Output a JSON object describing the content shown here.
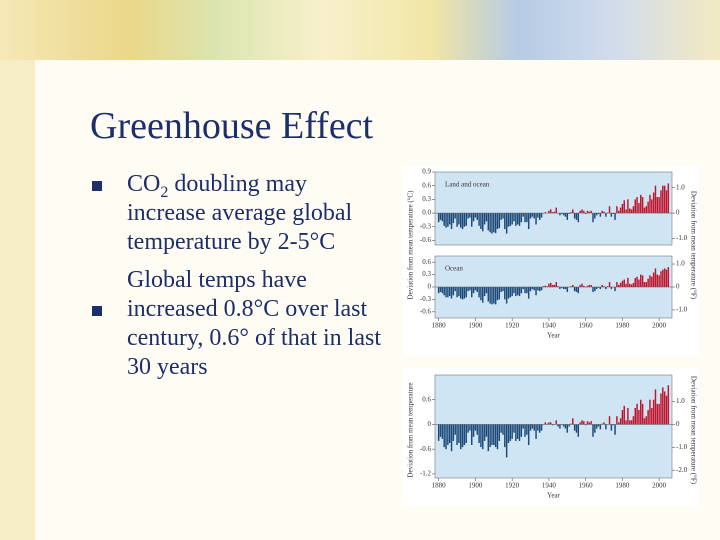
{
  "title": "Greenhouse Effect",
  "bullets": [
    {
      "before": "CO",
      "subscript": "2",
      "after": " doubling may increase average global temperature by 2-5°C"
    },
    {
      "before": "Global temps have increased 0.8°C over last century, 0.6° of that in last 30 years"
    }
  ],
  "chart_data": [
    {
      "type": "bar",
      "label": "Land and ocean",
      "ylabel": "Deviation from mean temperature (°C)",
      "y2label": "Deviation from mean temperature (°F)",
      "pos_color": "#c0142b",
      "neg_color": "#1d4a78",
      "xlim": [
        1878,
        2007
      ],
      "ylim": [
        -0.7,
        0.9
      ],
      "y2lim": [
        -1.26,
        1.62
      ],
      "yticks": [
        0.9,
        0.6,
        0.3,
        {
          "value": 0,
          "label": "0.0"
        },
        -0.3,
        -0.6
      ],
      "y2ticks": [
        {
          "value": 1,
          "label": "1.0"
        },
        0,
        {
          "value": -1,
          "label": "-1.0"
        }
      ],
      "x": [
        1880,
        1881,
        1882,
        1883,
        1884,
        1885,
        1886,
        1887,
        1888,
        1889,
        1890,
        1891,
        1892,
        1893,
        1894,
        1895,
        1896,
        1897,
        1898,
        1899,
        1900,
        1901,
        1902,
        1903,
        1904,
        1905,
        1906,
        1907,
        1908,
        1909,
        1910,
        1911,
        1912,
        1913,
        1914,
        1915,
        1916,
        1917,
        1918,
        1919,
        1920,
        1921,
        1922,
        1923,
        1924,
        1925,
        1926,
        1927,
        1928,
        1929,
        1930,
        1931,
        1932,
        1933,
        1934,
        1935,
        1936,
        1937,
        1938,
        1939,
        1940,
        1941,
        1942,
        1943,
        1944,
        1945,
        1946,
        1947,
        1948,
        1949,
        1950,
        1951,
        1952,
        1953,
        1954,
        1955,
        1956,
        1957,
        1958,
        1959,
        1960,
        1961,
        1962,
        1963,
        1964,
        1965,
        1966,
        1967,
        1968,
        1969,
        1970,
        1971,
        1972,
        1973,
        1974,
        1975,
        1976,
        1977,
        1978,
        1979,
        1980,
        1981,
        1982,
        1983,
        1984,
        1985,
        1986,
        1987,
        1988,
        1989,
        1990,
        1991,
        1992,
        1993,
        1994,
        1995,
        1996,
        1997,
        1998,
        1999,
        2000,
        2001,
        2002,
        2003,
        2004,
        2005
      ],
      "values": [
        -0.2,
        -0.15,
        -0.18,
        -0.28,
        -0.32,
        -0.3,
        -0.25,
        -0.35,
        -0.22,
        -0.12,
        -0.3,
        -0.25,
        -0.32,
        -0.35,
        -0.3,
        -0.28,
        -0.12,
        -0.1,
        -0.3,
        -0.18,
        -0.1,
        -0.15,
        -0.28,
        -0.35,
        -0.4,
        -0.25,
        -0.18,
        -0.38,
        -0.42,
        -0.45,
        -0.42,
        -0.44,
        -0.35,
        -0.33,
        -0.15,
        -0.12,
        -0.35,
        -0.45,
        -0.3,
        -0.28,
        -0.25,
        -0.18,
        -0.28,
        -0.25,
        -0.28,
        -0.2,
        -0.08,
        -0.2,
        -0.2,
        -0.35,
        -0.12,
        -0.08,
        -0.12,
        -0.25,
        -0.1,
        -0.15,
        -0.1,
        0.0,
        0.02,
        0.0,
        0.05,
        0.08,
        0.02,
        0.03,
        0.12,
        0.0,
        -0.05,
        -0.02,
        -0.05,
        -0.08,
        -0.15,
        -0.02,
        0.02,
        0.08,
        -0.12,
        -0.15,
        -0.2,
        0.05,
        0.08,
        0.05,
        -0.02,
        0.05,
        0.03,
        0.05,
        -0.2,
        -0.12,
        -0.05,
        -0.02,
        -0.08,
        0.05,
        0.03,
        -0.08,
        0.01,
        0.15,
        -0.08,
        -0.02,
        -0.15,
        0.15,
        0.05,
        0.12,
        0.2,
        0.28,
        0.08,
        0.3,
        0.1,
        0.08,
        0.15,
        0.3,
        0.35,
        0.22,
        0.4,
        0.35,
        0.12,
        0.15,
        0.25,
        0.4,
        0.3,
        0.45,
        0.6,
        0.35,
        0.35,
        0.5,
        0.6,
        0.6,
        0.5,
        0.65
      ]
    },
    {
      "type": "bar",
      "label": "Ocean",
      "xlabel": "Year",
      "pos_color": "#c0142b",
      "neg_color": "#1d4a78",
      "xlim": [
        1878,
        2007
      ],
      "ylim": [
        -0.75,
        0.75
      ],
      "y2lim": [
        -1.35,
        1.35
      ],
      "xticks": [
        1880,
        1900,
        1920,
        1940,
        1960,
        1980,
        2000
      ],
      "yticks": [
        0.6,
        0.3,
        0,
        -0.3,
        -0.6
      ],
      "y2ticks": [
        {
          "value": 1,
          "label": "1.0"
        },
        0,
        {
          "value": -1,
          "label": "-1.0"
        }
      ],
      "x": [
        1880,
        1881,
        1882,
        1883,
        1884,
        1885,
        1886,
        1887,
        1888,
        1889,
        1890,
        1891,
        1892,
        1893,
        1894,
        1895,
        1896,
        1897,
        1898,
        1899,
        1900,
        1901,
        1902,
        1903,
        1904,
        1905,
        1906,
        1907,
        1908,
        1909,
        1910,
        1911,
        1912,
        1913,
        1914,
        1915,
        1916,
        1917,
        1918,
        1919,
        1920,
        1921,
        1922,
        1923,
        1924,
        1925,
        1926,
        1927,
        1928,
        1929,
        1930,
        1931,
        1932,
        1933,
        1934,
        1935,
        1936,
        1937,
        1938,
        1939,
        1940,
        1941,
        1942,
        1943,
        1944,
        1945,
        1946,
        1947,
        1948,
        1949,
        1950,
        1951,
        1952,
        1953,
        1954,
        1955,
        1956,
        1957,
        1958,
        1959,
        1960,
        1961,
        1962,
        1963,
        1964,
        1965,
        1966,
        1967,
        1968,
        1969,
        1970,
        1971,
        1972,
        1973,
        1974,
        1975,
        1976,
        1977,
        1978,
        1979,
        1980,
        1981,
        1982,
        1983,
        1984,
        1985,
        1986,
        1987,
        1988,
        1989,
        1990,
        1991,
        1992,
        1993,
        1994,
        1995,
        1996,
        1997,
        1998,
        1999,
        2000,
        2001,
        2002,
        2003,
        2004,
        2005
      ],
      "values": [
        -0.15,
        -0.12,
        -0.15,
        -0.2,
        -0.25,
        -0.25,
        -0.22,
        -0.28,
        -0.2,
        -0.1,
        -0.25,
        -0.22,
        -0.28,
        -0.3,
        -0.28,
        -0.25,
        -0.1,
        -0.08,
        -0.25,
        -0.15,
        -0.08,
        -0.12,
        -0.25,
        -0.32,
        -0.38,
        -0.22,
        -0.15,
        -0.35,
        -0.4,
        -0.42,
        -0.4,
        -0.42,
        -0.32,
        -0.3,
        -0.12,
        -0.1,
        -0.3,
        -0.4,
        -0.28,
        -0.25,
        -0.22,
        -0.15,
        -0.22,
        -0.2,
        -0.22,
        -0.15,
        -0.05,
        -0.15,
        -0.15,
        -0.28,
        -0.1,
        -0.05,
        -0.08,
        -0.2,
        -0.08,
        -0.1,
        -0.08,
        0.02,
        0.03,
        0.02,
        0.08,
        0.1,
        0.05,
        0.05,
        0.12,
        0.02,
        -0.05,
        -0.02,
        -0.05,
        -0.05,
        -0.12,
        0.0,
        0.02,
        0.05,
        -0.1,
        -0.12,
        -0.15,
        0.05,
        0.08,
        0.03,
        0.0,
        0.03,
        0.05,
        0.05,
        -0.12,
        -0.1,
        -0.05,
        -0.02,
        -0.05,
        0.05,
        0.02,
        -0.05,
        0.02,
        0.12,
        -0.05,
        0.0,
        -0.1,
        0.12,
        0.05,
        0.1,
        0.15,
        0.18,
        0.08,
        0.22,
        0.08,
        0.06,
        0.1,
        0.22,
        0.25,
        0.18,
        0.3,
        0.28,
        0.12,
        0.12,
        0.2,
        0.28,
        0.25,
        0.35,
        0.45,
        0.3,
        0.28,
        0.38,
        0.42,
        0.45,
        0.42,
        0.48
      ]
    },
    {
      "type": "bar",
      "xlabel": "Year",
      "ylabel": "Deviation from mean temperature",
      "y2label": "Deviation from mean temperature (°F)",
      "pos_color": "#c0142b",
      "neg_color": "#1d4a78",
      "xlim": [
        1878,
        2007
      ],
      "ylim": [
        -1.3,
        1.2
      ],
      "y2lim": [
        -2.34,
        2.16
      ],
      "xticks": [
        1880,
        1900,
        1920,
        1940,
        1960,
        1980,
        2000
      ],
      "yticks": [
        0.6,
        0,
        -0.6,
        -1.2
      ],
      "y2ticks": [
        {
          "value": 1,
          "label": "1.0"
        },
        0,
        {
          "value": -1,
          "label": "-1.0"
        },
        {
          "value": -2,
          "label": "-2.0"
        }
      ],
      "x": [
        1880,
        1881,
        1882,
        1883,
        1884,
        1885,
        1886,
        1887,
        1888,
        1889,
        1890,
        1891,
        1892,
        1893,
        1894,
        1895,
        1896,
        1897,
        1898,
        1899,
        1900,
        1901,
        1902,
        1903,
        1904,
        1905,
        1906,
        1907,
        1908,
        1909,
        1910,
        1911,
        1912,
        1913,
        1914,
        1915,
        1916,
        1917,
        1918,
        1919,
        1920,
        1921,
        1922,
        1923,
        1924,
        1925,
        1926,
        1927,
        1928,
        1929,
        1930,
        1931,
        1932,
        1933,
        1934,
        1935,
        1936,
        1937,
        1938,
        1939,
        1940,
        1941,
        1942,
        1943,
        1944,
        1945,
        1946,
        1947,
        1948,
        1949,
        1950,
        1951,
        1952,
        1953,
        1954,
        1955,
        1956,
        1957,
        1958,
        1959,
        1960,
        1961,
        1962,
        1963,
        1964,
        1965,
        1966,
        1967,
        1968,
        1969,
        1970,
        1971,
        1972,
        1973,
        1974,
        1975,
        1976,
        1977,
        1978,
        1979,
        1980,
        1981,
        1982,
        1983,
        1984,
        1985,
        1986,
        1987,
        1988,
        1989,
        1990,
        1991,
        1992,
        1993,
        1994,
        1995,
        1996,
        1997,
        1998,
        1999,
        2000,
        2001,
        2002,
        2003,
        2004,
        2005
      ],
      "values": [
        -0.4,
        -0.3,
        -0.35,
        -0.55,
        -0.6,
        -0.5,
        -0.45,
        -0.65,
        -0.4,
        -0.25,
        -0.5,
        -0.45,
        -0.6,
        -0.55,
        -0.5,
        -0.45,
        -0.2,
        -0.15,
        -0.5,
        -0.3,
        -0.15,
        -0.25,
        -0.45,
        -0.55,
        -0.6,
        -0.4,
        -0.3,
        -0.65,
        -0.55,
        -0.5,
        -0.5,
        -0.55,
        -0.6,
        -0.4,
        -0.2,
        -0.25,
        -0.55,
        -0.8,
        -0.45,
        -0.4,
        -0.35,
        -0.2,
        -0.4,
        -0.35,
        -0.4,
        -0.3,
        -0.1,
        -0.3,
        -0.25,
        -0.5,
        -0.15,
        -0.1,
        -0.15,
        -0.35,
        -0.15,
        -0.2,
        -0.15,
        0.0,
        0.05,
        0.02,
        0.05,
        0.05,
        -0.02,
        0.0,
        0.1,
        -0.05,
        -0.1,
        0.0,
        -0.05,
        -0.1,
        -0.2,
        -0.05,
        0.02,
        0.15,
        -0.15,
        -0.2,
        -0.3,
        0.05,
        0.1,
        0.08,
        -0.02,
        0.08,
        0.05,
        0.08,
        -0.3,
        -0.2,
        -0.1,
        -0.05,
        -0.12,
        0.02,
        0.05,
        -0.12,
        0.0,
        0.2,
        -0.15,
        -0.02,
        -0.25,
        0.2,
        0.05,
        0.15,
        0.35,
        0.45,
        0.1,
        0.4,
        0.1,
        0.1,
        0.2,
        0.4,
        0.5,
        0.35,
        0.6,
        0.5,
        0.15,
        0.2,
        0.35,
        0.6,
        0.4,
        0.6,
        0.85,
        0.5,
        0.5,
        0.75,
        0.9,
        0.8,
        0.7,
        0.95
      ]
    }
  ]
}
